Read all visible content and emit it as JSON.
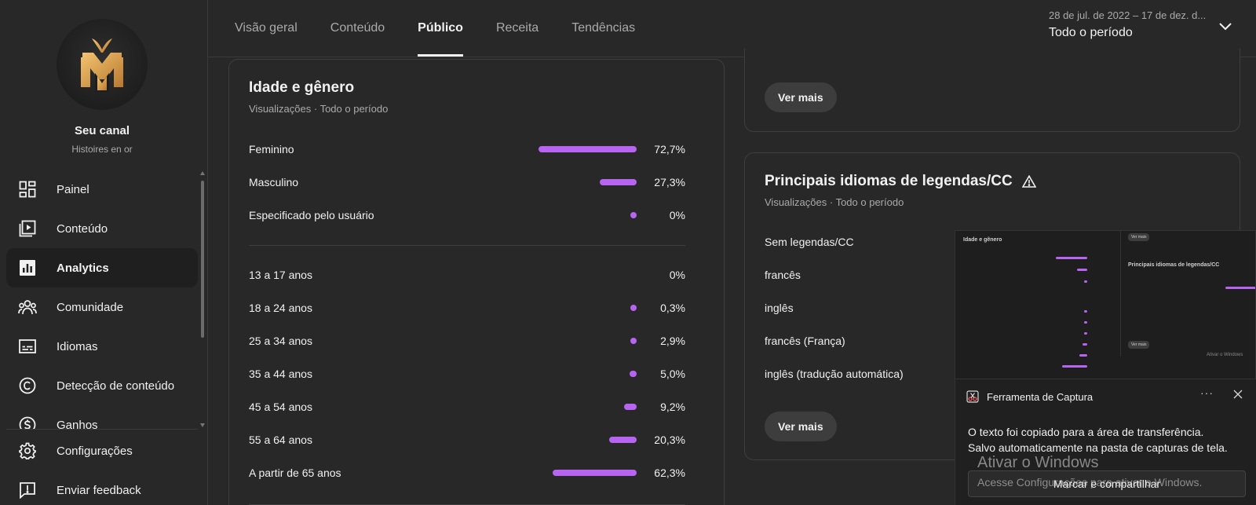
{
  "channel": {
    "name": "Seu canal",
    "subtitle": "Histoires en or"
  },
  "nav": {
    "items": [
      {
        "label": "Painel",
        "icon": "dashboard-icon"
      },
      {
        "label": "Conteúdo",
        "icon": "content-icon"
      },
      {
        "label": "Analytics",
        "icon": "analytics-icon",
        "active": true
      },
      {
        "label": "Comunidade",
        "icon": "community-icon"
      },
      {
        "label": "Idiomas",
        "icon": "subtitles-icon"
      },
      {
        "label": "Detecção de conteúdo",
        "icon": "copyright-icon"
      },
      {
        "label": "Ganhos",
        "icon": "earn-icon"
      }
    ],
    "bottom": [
      {
        "label": "Configurações",
        "icon": "gear-icon"
      },
      {
        "label": "Enviar feedback",
        "icon": "feedback-icon"
      }
    ]
  },
  "tabs": [
    "Visão geral",
    "Conteúdo",
    "Público",
    "Receita",
    "Tendências"
  ],
  "active_tab": "Público",
  "date_range": {
    "range": "28 de jul. de 2022 – 17 de dez. d...",
    "period": "Todo o período"
  },
  "age_gender": {
    "title": "Idade e gênero",
    "subtitle": "Visualizações · Todo o período",
    "gender": [
      {
        "label": "Feminino",
        "value": "72,7%",
        "pct": 72.7
      },
      {
        "label": "Masculino",
        "value": "27,3%",
        "pct": 27.3
      },
      {
        "label": "Especificado pelo usuário",
        "value": "0%",
        "pct": 0
      }
    ],
    "age": [
      {
        "label": "13 a 17 anos",
        "value": "0%",
        "pct": 0,
        "dot": false
      },
      {
        "label": "18 a 24 anos",
        "value": "0,3%",
        "pct": 0.3,
        "dot": true
      },
      {
        "label": "25 a 34 anos",
        "value": "2,9%",
        "pct": 2.9,
        "dot": true
      },
      {
        "label": "35 a 44 anos",
        "value": "5,0%",
        "pct": 5.0,
        "dot": true
      },
      {
        "label": "45 a 54 anos",
        "value": "9,2%",
        "pct": 9.2,
        "dot": true
      },
      {
        "label": "55 a 64 anos",
        "value": "20,3%",
        "pct": 20.3,
        "dot": true
      },
      {
        "label": "A partir de 65 anos",
        "value": "62,3%",
        "pct": 62.3,
        "dot": true
      }
    ]
  },
  "top_card": {
    "button": "Ver mais"
  },
  "languages": {
    "title": "Principais idiomas de legendas/CC",
    "subtitle": "Visualizações · Todo o período",
    "items": [
      "Sem legendas/CC",
      "francês",
      "inglês",
      "francês (França)",
      "inglês (tradução automática)"
    ],
    "button": "Ver mais"
  },
  "snip_tool": {
    "app_name": "Ferramenta de Captura",
    "line1": "O texto foi copiado para a área de transferência.",
    "line2": "Salvo automaticamente na pasta de capturas de tela.",
    "button": "Marcar e compartilhar",
    "preview": {
      "title": "Idade e gênero",
      "lang_title": "Principais idiomas de legendas/CC",
      "button": "Ver mais",
      "watermark": "Ativar o Windows"
    }
  },
  "watermark": {
    "title": "Ativar o Windows",
    "text": "Acesse Configurações para ativar o Windows."
  },
  "colors": {
    "accent": "#b764f1",
    "background": "#282828",
    "card_border": "#3f3f3f"
  }
}
